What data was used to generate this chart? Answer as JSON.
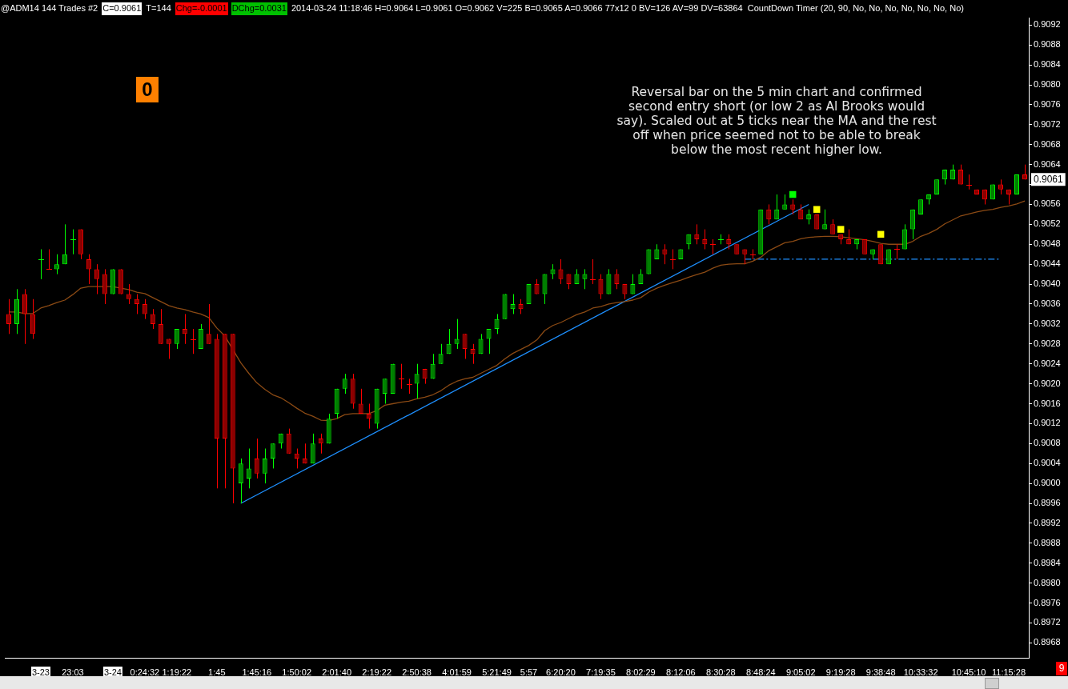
{
  "chart_data": {
    "type": "candlestick",
    "categories": [
      null,
      null,
      null,
      null,
      "3-23",
      null,
      null,
      null,
      "23:03",
      null,
      null,
      null,
      null,
      "3-24",
      null,
      null,
      null,
      "0:24:32",
      null,
      null,
      null,
      "1:19:22",
      null,
      null,
      null,
      null,
      "1:45",
      null,
      null,
      null,
      null,
      "1:45:16",
      null,
      null,
      null,
      null,
      "1:50:02",
      null,
      null,
      null,
      null,
      "2:01:40",
      null,
      null,
      null,
      null,
      "2:19:22",
      null,
      null,
      null,
      null,
      "2:50:38",
      null,
      null,
      null,
      null,
      "4:01:59",
      null,
      null,
      null,
      null,
      "5:21:49",
      null,
      null,
      null,
      "5:57",
      null,
      null,
      null,
      "6:20:20",
      null,
      null,
      null,
      null,
      "7:19:35",
      null,
      null,
      null,
      null,
      "8:02:29",
      null,
      null,
      null,
      null,
      "8:12:06",
      null,
      null,
      null,
      null,
      "8:30:28",
      null,
      null,
      null,
      null,
      "8:48:24",
      null,
      null,
      null,
      null,
      "9:05:02",
      null,
      null,
      null,
      null,
      "9:19:28",
      null,
      null,
      null,
      null,
      "9:38:48",
      null,
      null,
      null,
      null,
      "10:33:32",
      null,
      null,
      null,
      null,
      null,
      "10:45:10",
      null,
      null,
      null,
      null,
      "11:15:28",
      null,
      null
    ],
    "ohlc": [
      [
        0.9034,
        0.9037,
        0.903,
        0.9032
      ],
      [
        0.9032,
        0.9039,
        0.903,
        0.9037
      ],
      [
        0.9038,
        0.9039,
        0.9028,
        0.9034
      ],
      [
        0.9034,
        0.9037,
        0.9029,
        0.903
      ],
      [
        0.9045,
        0.9047,
        0.9041,
        0.9045
      ],
      [
        0.9043,
        0.9047,
        0.9043,
        0.9043
      ],
      [
        0.9043,
        0.9046,
        0.9042,
        0.9044
      ],
      [
        0.9044,
        0.9052,
        0.9044,
        0.9046
      ],
      [
        0.9049,
        0.9051,
        0.9046,
        0.9049
      ],
      [
        0.9051,
        0.9051,
        0.9045,
        0.9046
      ],
      [
        0.9045,
        0.9046,
        0.904,
        0.9043
      ],
      [
        0.9043,
        0.9044,
        0.9038,
        0.9041
      ],
      [
        0.9042,
        0.9043,
        0.9036,
        0.9038
      ],
      [
        0.9038,
        0.9043,
        0.9038,
        0.9043
      ],
      [
        0.9043,
        0.9043,
        0.9038,
        0.9038
      ],
      [
        0.9038,
        0.904,
        0.9036,
        0.9037
      ],
      [
        0.9037,
        0.9038,
        0.9034,
        0.9036
      ],
      [
        0.9036,
        0.9037,
        0.9033,
        0.9034
      ],
      [
        0.9034,
        0.9035,
        0.9031,
        0.9032
      ],
      [
        0.9032,
        0.9035,
        0.9028,
        0.9028
      ],
      [
        0.9029,
        0.9029,
        0.9025,
        0.9028
      ],
      [
        0.9028,
        0.9031,
        0.9027,
        0.9031
      ],
      [
        0.9031,
        0.9034,
        0.9028,
        0.903
      ],
      [
        0.9029,
        0.9031,
        0.9026,
        0.9029
      ],
      [
        0.9027,
        0.9032,
        0.9027,
        0.9031
      ],
      [
        0.903,
        0.9036,
        0.9028,
        0.9028
      ],
      [
        0.9029,
        0.903,
        0.8999,
        0.9009
      ],
      [
        0.903,
        0.903,
        0.8999,
        0.9009
      ],
      [
        0.903,
        0.903,
        0.8996,
        0.9003
      ],
      [
        0.9,
        0.9005,
        0.8996,
        0.9004
      ],
      [
        0.9001,
        0.9007,
        0.8999,
        0.9003
      ],
      [
        0.9005,
        0.9009,
        0.9001,
        0.9002
      ],
      [
        0.9002,
        0.9007,
        0.9,
        0.9005
      ],
      [
        0.9005,
        0.9008,
        0.9003,
        0.9008
      ],
      [
        0.9008,
        0.901,
        0.9007,
        0.901
      ],
      [
        0.901,
        0.9011,
        0.9006,
        0.9006
      ],
      [
        0.9006,
        0.9007,
        0.9003,
        0.9005
      ],
      [
        0.9005,
        0.9008,
        0.9004,
        0.9004
      ],
      [
        0.9004,
        0.901,
        0.9004,
        0.9008
      ],
      [
        0.9009,
        0.901,
        0.9006,
        0.9008
      ],
      [
        0.9008,
        0.9014,
        0.9008,
        0.9013
      ],
      [
        0.9014,
        0.9019,
        0.9013,
        0.9019
      ],
      [
        0.9019,
        0.9022,
        0.9018,
        0.9021
      ],
      [
        0.9021,
        0.9022,
        0.9015,
        0.9016
      ],
      [
        0.9016,
        0.9019,
        0.9014,
        0.9014
      ],
      [
        0.9014,
        0.9016,
        0.9011,
        0.9013
      ],
      [
        0.9012,
        0.9019,
        0.9011,
        0.9019
      ],
      [
        0.9018,
        0.9021,
        0.9016,
        0.9021
      ],
      [
        0.9018,
        0.9024,
        0.9018,
        0.9024
      ],
      [
        0.9021,
        0.9024,
        0.9019,
        0.9021
      ],
      [
        0.902,
        0.9021,
        0.9018,
        0.902
      ],
      [
        0.902,
        0.9024,
        0.9017,
        0.9022
      ],
      [
        0.9023,
        0.9023,
        0.902,
        0.9021
      ],
      [
        0.9021,
        0.9026,
        0.9021,
        0.9024
      ],
      [
        0.9024,
        0.9028,
        0.9024,
        0.9026
      ],
      [
        0.9026,
        0.9031,
        0.9026,
        0.9028
      ],
      [
        0.9028,
        0.9033,
        0.9027,
        0.9029
      ],
      [
        0.903,
        0.903,
        0.9025,
        0.9027
      ],
      [
        0.9027,
        0.9028,
        0.9024,
        0.9026
      ],
      [
        0.9026,
        0.903,
        0.9026,
        0.9029
      ],
      [
        0.9029,
        0.9031,
        0.9026,
        0.9031
      ],
      [
        0.9031,
        0.9034,
        0.903,
        0.9033
      ],
      [
        0.9033,
        0.9038,
        0.9033,
        0.9038
      ],
      [
        0.9035,
        0.9038,
        0.9034,
        0.9036
      ],
      [
        0.9036,
        0.9037,
        0.9034,
        0.9035
      ],
      [
        0.9036,
        0.904,
        0.9036,
        0.904
      ],
      [
        0.904,
        0.9041,
        0.9038,
        0.9038
      ],
      [
        0.9038,
        0.9042,
        0.9036,
        0.9042
      ],
      [
        0.9042,
        0.9044,
        0.9041,
        0.9043
      ],
      [
        0.9043,
        0.9045,
        0.904,
        0.9041
      ],
      [
        0.9042,
        0.9042,
        0.9039,
        0.904
      ],
      [
        0.904,
        0.9043,
        0.904,
        0.9042
      ],
      [
        0.9041,
        0.9043,
        0.9039,
        0.9042
      ],
      [
        0.9041,
        0.9045,
        0.904,
        0.9041
      ],
      [
        0.9041,
        0.9042,
        0.9037,
        0.9038
      ],
      [
        0.9038,
        0.9043,
        0.9038,
        0.9042
      ],
      [
        0.9042,
        0.9043,
        0.9039,
        0.904
      ],
      [
        0.904,
        0.904,
        0.9037,
        0.9038
      ],
      [
        0.9038,
        0.9042,
        0.9038,
        0.904
      ],
      [
        0.904,
        0.9043,
        0.904,
        0.9042
      ],
      [
        0.9042,
        0.9047,
        0.9042,
        0.9047
      ],
      [
        0.9045,
        0.9048,
        0.9045,
        0.9047
      ],
      [
        0.9047,
        0.9048,
        0.9044,
        0.9046
      ],
      [
        0.9045,
        0.9047,
        0.9043,
        0.9045
      ],
      [
        0.9045,
        0.9047,
        0.9045,
        0.9047
      ],
      [
        0.9048,
        0.905,
        0.9047,
        0.905
      ],
      [
        0.905,
        0.9052,
        0.9048,
        0.9049
      ],
      [
        0.9049,
        0.9051,
        0.9047,
        0.9048
      ],
      [
        0.9048,
        0.9049,
        0.9046,
        0.9048
      ],
      [
        0.9049,
        0.905,
        0.9048,
        0.9049
      ],
      [
        0.9049,
        0.905,
        0.9047,
        0.9048
      ],
      [
        0.9048,
        0.9048,
        0.9046,
        0.9046
      ],
      [
        0.9047,
        0.9047,
        0.9044,
        0.9046
      ],
      [
        0.9046,
        0.9047,
        0.9045,
        0.9046
      ],
      [
        0.9046,
        0.9055,
        0.9046,
        0.9055
      ],
      [
        0.9055,
        0.9056,
        0.9052,
        0.9053
      ],
      [
        0.9053,
        0.9058,
        0.9053,
        0.9055
      ],
      [
        0.9055,
        0.9058,
        0.9055,
        0.9056
      ],
      [
        0.9056,
        0.9057,
        0.9054,
        0.9055
      ],
      [
        0.9055,
        0.9056,
        0.9053,
        0.9053
      ],
      [
        0.9053,
        0.9055,
        0.9052,
        0.9054
      ],
      [
        0.9054,
        0.9054,
        0.9051,
        0.9051
      ],
      [
        0.9051,
        0.9055,
        0.9051,
        0.9052
      ],
      [
        0.9052,
        0.9053,
        0.905,
        0.905
      ],
      [
        0.905,
        0.905,
        0.9048,
        0.9049
      ],
      [
        0.9049,
        0.9051,
        0.9048,
        0.9048
      ],
      [
        0.9048,
        0.9049,
        0.9047,
        0.9049
      ],
      [
        0.9049,
        0.9049,
        0.9046,
        0.9046
      ],
      [
        0.9046,
        0.9047,
        0.9045,
        0.9047
      ],
      [
        0.9048,
        0.9048,
        0.9044,
        0.9044
      ],
      [
        0.9044,
        0.9047,
        0.9044,
        0.9047
      ],
      [
        0.9047,
        0.9048,
        0.9045,
        0.9047
      ],
      [
        0.9047,
        0.9052,
        0.9047,
        0.9051
      ],
      [
        0.9051,
        0.9055,
        0.9049,
        0.9055
      ],
      [
        0.9054,
        0.9057,
        0.9054,
        0.9057
      ],
      [
        0.9057,
        0.9058,
        0.9056,
        0.9058
      ],
      [
        0.9058,
        0.9061,
        0.9058,
        0.9061
      ],
      [
        0.9061,
        0.9063,
        0.906,
        0.9063
      ],
      [
        0.9061,
        0.9064,
        0.9061,
        0.9063
      ],
      [
        0.9063,
        0.9064,
        0.906,
        0.906
      ],
      [
        0.906,
        0.9062,
        0.9059,
        0.906
      ],
      [
        0.9059,
        0.9059,
        0.9058,
        0.9058
      ],
      [
        0.9059,
        0.9059,
        0.9056,
        0.9057
      ],
      [
        0.9057,
        0.906,
        0.9057,
        0.906
      ],
      [
        0.906,
        0.9061,
        0.9058,
        0.9059
      ],
      [
        0.9059,
        0.9059,
        0.9056,
        0.9058
      ],
      [
        0.9058,
        0.9062,
        0.9058,
        0.9062
      ],
      [
        0.9062,
        0.9064,
        0.9061,
        0.9061
      ]
    ],
    "series": [
      {
        "type": "line",
        "color": "#8b4a14",
        "marker": "none",
        "values": [
          0.90344,
          0.90344,
          0.90341,
          0.90341,
          0.90352,
          0.90357,
          0.90363,
          0.90368,
          0.90379,
          0.90392,
          0.90395,
          0.90395,
          0.90395,
          0.90395,
          0.90392,
          0.90389,
          0.90384,
          0.90381,
          0.90373,
          0.90365,
          0.90357,
          0.90352,
          0.90349,
          0.90344,
          0.9034,
          0.90333,
          0.90312,
          0.90296,
          0.90269,
          0.90242,
          0.90221,
          0.90202,
          0.90189,
          0.90178,
          0.90172,
          0.90162,
          0.90151,
          0.90141,
          0.90135,
          0.90127,
          0.90126,
          0.9013,
          0.90138,
          0.9014,
          0.9014,
          0.9014,
          0.90146,
          0.90157,
          0.9016,
          0.90163,
          0.90165,
          0.9017,
          0.90173,
          0.90178,
          0.90186,
          0.90197,
          0.90205,
          0.9021,
          0.90213,
          0.90221,
          0.90229,
          0.90237,
          0.9025,
          0.90261,
          0.90269,
          0.90277,
          0.90288,
          0.90307,
          0.90317,
          0.90323,
          0.90331,
          0.90339,
          0.90344,
          0.90352,
          0.90355,
          0.9036,
          0.90363,
          0.90365,
          0.90368,
          0.90373,
          0.90384,
          0.90392,
          0.90398,
          0.90403,
          0.90408,
          0.90414,
          0.90419,
          0.90424,
          0.90432,
          0.90438,
          0.9044,
          0.90441,
          0.90441,
          0.90446,
          0.90454,
          0.90467,
          0.90475,
          0.90483,
          0.90486,
          0.90491,
          0.90494,
          0.90495,
          0.90496,
          0.90496,
          0.90495,
          0.90493,
          0.90491,
          0.90489,
          0.90486,
          0.90482,
          0.9048,
          0.9048,
          0.9048,
          0.90486,
          0.90496,
          0.90502,
          0.9051,
          0.90521,
          0.90529,
          0.90537,
          0.90541,
          0.90545,
          0.90548,
          0.9055,
          0.90554,
          0.90557,
          0.90561,
          0.90567
        ]
      },
      {
        "type": "line",
        "color": "#1e90ff",
        "marker": "none",
        "values": [
          null,
          null,
          null,
          null,
          null,
          null,
          null,
          null,
          null,
          null,
          null,
          null,
          null,
          null,
          null,
          null,
          null,
          null,
          null,
          null,
          null,
          null,
          null,
          null,
          null,
          null,
          null,
          null,
          null,
          0.8996,
          null,
          null,
          null,
          null,
          null,
          null,
          null,
          null,
          null,
          null,
          null,
          null,
          null,
          null,
          null,
          null,
          null,
          null,
          null,
          null,
          null,
          null,
          null,
          null,
          null,
          null,
          null,
          null,
          null,
          null,
          null,
          null,
          null,
          null,
          null,
          null,
          null,
          null,
          null,
          null,
          null,
          null,
          null,
          null,
          null,
          null,
          null,
          null,
          null,
          null,
          null,
          null,
          null,
          null,
          null,
          null,
          null,
          null,
          null,
          null,
          null,
          null,
          null,
          null,
          null,
          null,
          null,
          null,
          null,
          null,
          0.9056,
          null,
          null,
          null,
          null,
          null,
          null,
          null,
          null,
          null,
          null,
          null,
          null,
          null,
          null,
          null,
          null,
          null,
          null,
          null,
          null,
          null,
          null,
          null,
          null,
          null,
          null,
          null
        ]
      },
      {
        "type": "line",
        "color": "#1e90ff",
        "marker": "none",
        "line_style": "dashed",
        "values": [
          null,
          null,
          null,
          null,
          null,
          null,
          null,
          null,
          null,
          null,
          null,
          null,
          null,
          null,
          null,
          null,
          null,
          null,
          null,
          null,
          null,
          null,
          null,
          null,
          null,
          null,
          null,
          null,
          null,
          null,
          null,
          null,
          null,
          null,
          null,
          null,
          null,
          null,
          null,
          null,
          null,
          null,
          null,
          null,
          null,
          null,
          null,
          null,
          null,
          null,
          null,
          null,
          null,
          null,
          null,
          null,
          null,
          null,
          null,
          null,
          null,
          null,
          null,
          null,
          null,
          null,
          null,
          null,
          null,
          null,
          null,
          null,
          null,
          null,
          null,
          null,
          null,
          null,
          null,
          null,
          null,
          null,
          null,
          null,
          null,
          null,
          null,
          null,
          null,
          null,
          null,
          null,
          0.9045,
          null,
          null,
          null,
          null,
          null,
          null,
          null,
          null,
          null,
          null,
          null,
          null,
          null,
          null,
          null,
          null,
          null,
          null,
          null,
          null,
          null,
          null,
          null,
          null,
          null,
          null,
          null,
          null,
          null,
          null,
          null,
          0.9045,
          null,
          null,
          null
        ]
      },
      {
        "type": "scatter",
        "color": "#00ff00",
        "marker": "square",
        "values": [
          null,
          null,
          null,
          null,
          null,
          null,
          null,
          null,
          null,
          null,
          null,
          null,
          null,
          null,
          null,
          null,
          null,
          null,
          null,
          null,
          null,
          null,
          null,
          null,
          null,
          null,
          null,
          null,
          null,
          null,
          null,
          null,
          null,
          null,
          null,
          null,
          null,
          null,
          null,
          null,
          null,
          null,
          null,
          null,
          null,
          null,
          null,
          null,
          null,
          null,
          null,
          null,
          null,
          null,
          null,
          null,
          null,
          null,
          null,
          null,
          null,
          null,
          null,
          null,
          null,
          null,
          null,
          null,
          null,
          null,
          null,
          null,
          null,
          null,
          null,
          null,
          null,
          null,
          null,
          null,
          null,
          null,
          null,
          null,
          null,
          null,
          null,
          null,
          null,
          null,
          null,
          null,
          null,
          null,
          null,
          null,
          null,
          null,
          0.9058,
          null,
          null,
          null,
          null,
          null,
          null,
          null,
          null,
          null,
          null,
          null,
          null,
          null,
          null,
          null,
          null,
          null,
          null,
          null,
          null,
          null,
          null,
          null,
          null,
          null,
          null,
          null,
          null,
          null
        ]
      },
      {
        "type": "scatter",
        "color": "#ffff00",
        "marker": "square",
        "values": [
          null,
          null,
          null,
          null,
          null,
          null,
          null,
          null,
          null,
          null,
          null,
          null,
          null,
          null,
          null,
          null,
          null,
          null,
          null,
          null,
          null,
          null,
          null,
          null,
          null,
          null,
          null,
          null,
          null,
          null,
          null,
          null,
          null,
          null,
          null,
          null,
          null,
          null,
          null,
          null,
          null,
          null,
          null,
          null,
          null,
          null,
          null,
          null,
          null,
          null,
          null,
          null,
          null,
          null,
          null,
          null,
          null,
          null,
          null,
          null,
          null,
          null,
          null,
          null,
          null,
          null,
          null,
          null,
          null,
          null,
          null,
          null,
          null,
          null,
          null,
          null,
          null,
          null,
          null,
          null,
          null,
          null,
          null,
          null,
          null,
          null,
          null,
          null,
          null,
          null,
          null,
          null,
          null,
          null,
          null,
          null,
          null,
          null,
          null,
          null,
          null,
          0.9055,
          null,
          null,
          0.9051,
          null,
          null,
          null,
          null,
          0.905,
          null,
          null,
          null,
          null,
          null,
          null,
          null,
          null,
          null,
          null,
          null,
          null,
          null,
          null,
          null,
          null,
          null,
          null
        ]
      }
    ],
    "ylim": [
      0.8965,
      0.90935
    ],
    "yticks": [
      0.8968,
      0.8972,
      0.8976,
      {
        "value": 0.898,
        "label": "0.8980"
      },
      0.8984,
      0.8988,
      0.8992,
      0.8996,
      {
        "value": 0.9,
        "label": "0.9000"
      },
      0.9004,
      0.9008,
      0.9012,
      0.9016,
      {
        "value": 0.902,
        "label": "0.9020"
      },
      0.9024,
      0.9028,
      0.9032,
      0.9036,
      {
        "value": 0.904,
        "label": "0.9040"
      },
      0.9044,
      0.9048,
      0.9052,
      0.9056,
      {
        "value": 0.906,
        "label": null
      },
      0.9064,
      0.9068,
      0.9072,
      0.9076,
      {
        "value": 0.908,
        "label": "0.9080"
      },
      0.9084,
      0.9088,
      0.9092
    ],
    "grid": false,
    "annotations": [
      "@ADM14  144 Trades  #2",
      "C=0.9061",
      "T=144",
      "Chg=-0.0001",
      "DChg=0.0031",
      "2014-03-24 11:18:46 H=0.9064 L=0.9061 O=0.9062 V=225 B=0.9065 A=0.9066 77x12 0 BV=126 AV=99 DV=63864",
      "CountDown Timer   (20, 90, No, No, No, No, No, No, No)",
      "0",
      "Reversal bar on the 5 min chart and confirmed second entry short (or low 2 as Al Brooks would say). Scaled out at 5 ticks near the MA and the rest off when price seemed not to be able to break below the most recent higher low.",
      "9",
      {
        "text": "0.9061",
        "y": 0.9061
      }
    ]
  }
}
